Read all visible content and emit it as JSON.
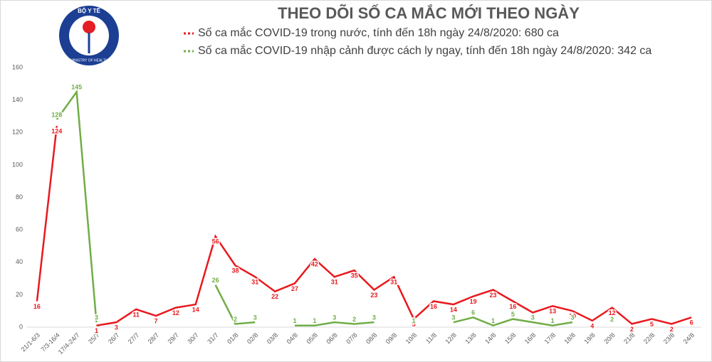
{
  "logo": {
    "top": "BỘ Y TẾ",
    "bottom": "MINISTRY OF HEALTH"
  },
  "chart_data": {
    "type": "line",
    "title": "THEO DÕI SỐ CA MẮC MỚI THEO NGÀY",
    "categories": [
      "21/1-6/3",
      "7/3-16/4",
      "17/4-24/7",
      "25/7",
      "26/7",
      "27/7",
      "28/7",
      "29/7",
      "30/7",
      "31/7",
      "01/8",
      "02/8",
      "03/8",
      "04/8",
      "05/8",
      "06/8",
      "07/8",
      "08/8",
      "09/8",
      "10/8",
      "11/8",
      "12/8",
      "13/8",
      "14/8",
      "15/8",
      "16/8",
      "17/8",
      "18/8",
      "19/8",
      "20/8",
      "21/8",
      "22/8",
      "23/8",
      "24/8"
    ],
    "series": [
      {
        "name": "Số ca mắc COVID-19 trong nước, tính đến 18h ngày 24/8/2020: 680 ca",
        "color": "#e8191e",
        "values": [
          16,
          124,
          null,
          1,
          3,
          11,
          7,
          12,
          14,
          56,
          38,
          31,
          22,
          27,
          42,
          31,
          35,
          23,
          31,
          5,
          16,
          14,
          19,
          23,
          16,
          9,
          13,
          10,
          4,
          12,
          2,
          5,
          2,
          6
        ]
      },
      {
        "name": "Số ca mắc COVID-19 nhập cảnh được cách ly ngay, tính đến 18h ngày 24/8/2020: 342 ca",
        "color": "#70ad47",
        "values": [
          null,
          128,
          145,
          3,
          null,
          null,
          null,
          null,
          null,
          26,
          2,
          3,
          null,
          1,
          1,
          3,
          2,
          3,
          null,
          1,
          null,
          3,
          6,
          1,
          5,
          3,
          1,
          3,
          null,
          2,
          null,
          null,
          null,
          null
        ]
      }
    ],
    "ylim": [
      0,
      160
    ],
    "yticks": [
      0,
      20,
      40,
      60,
      80,
      100,
      120,
      140,
      160
    ],
    "grid": false
  }
}
